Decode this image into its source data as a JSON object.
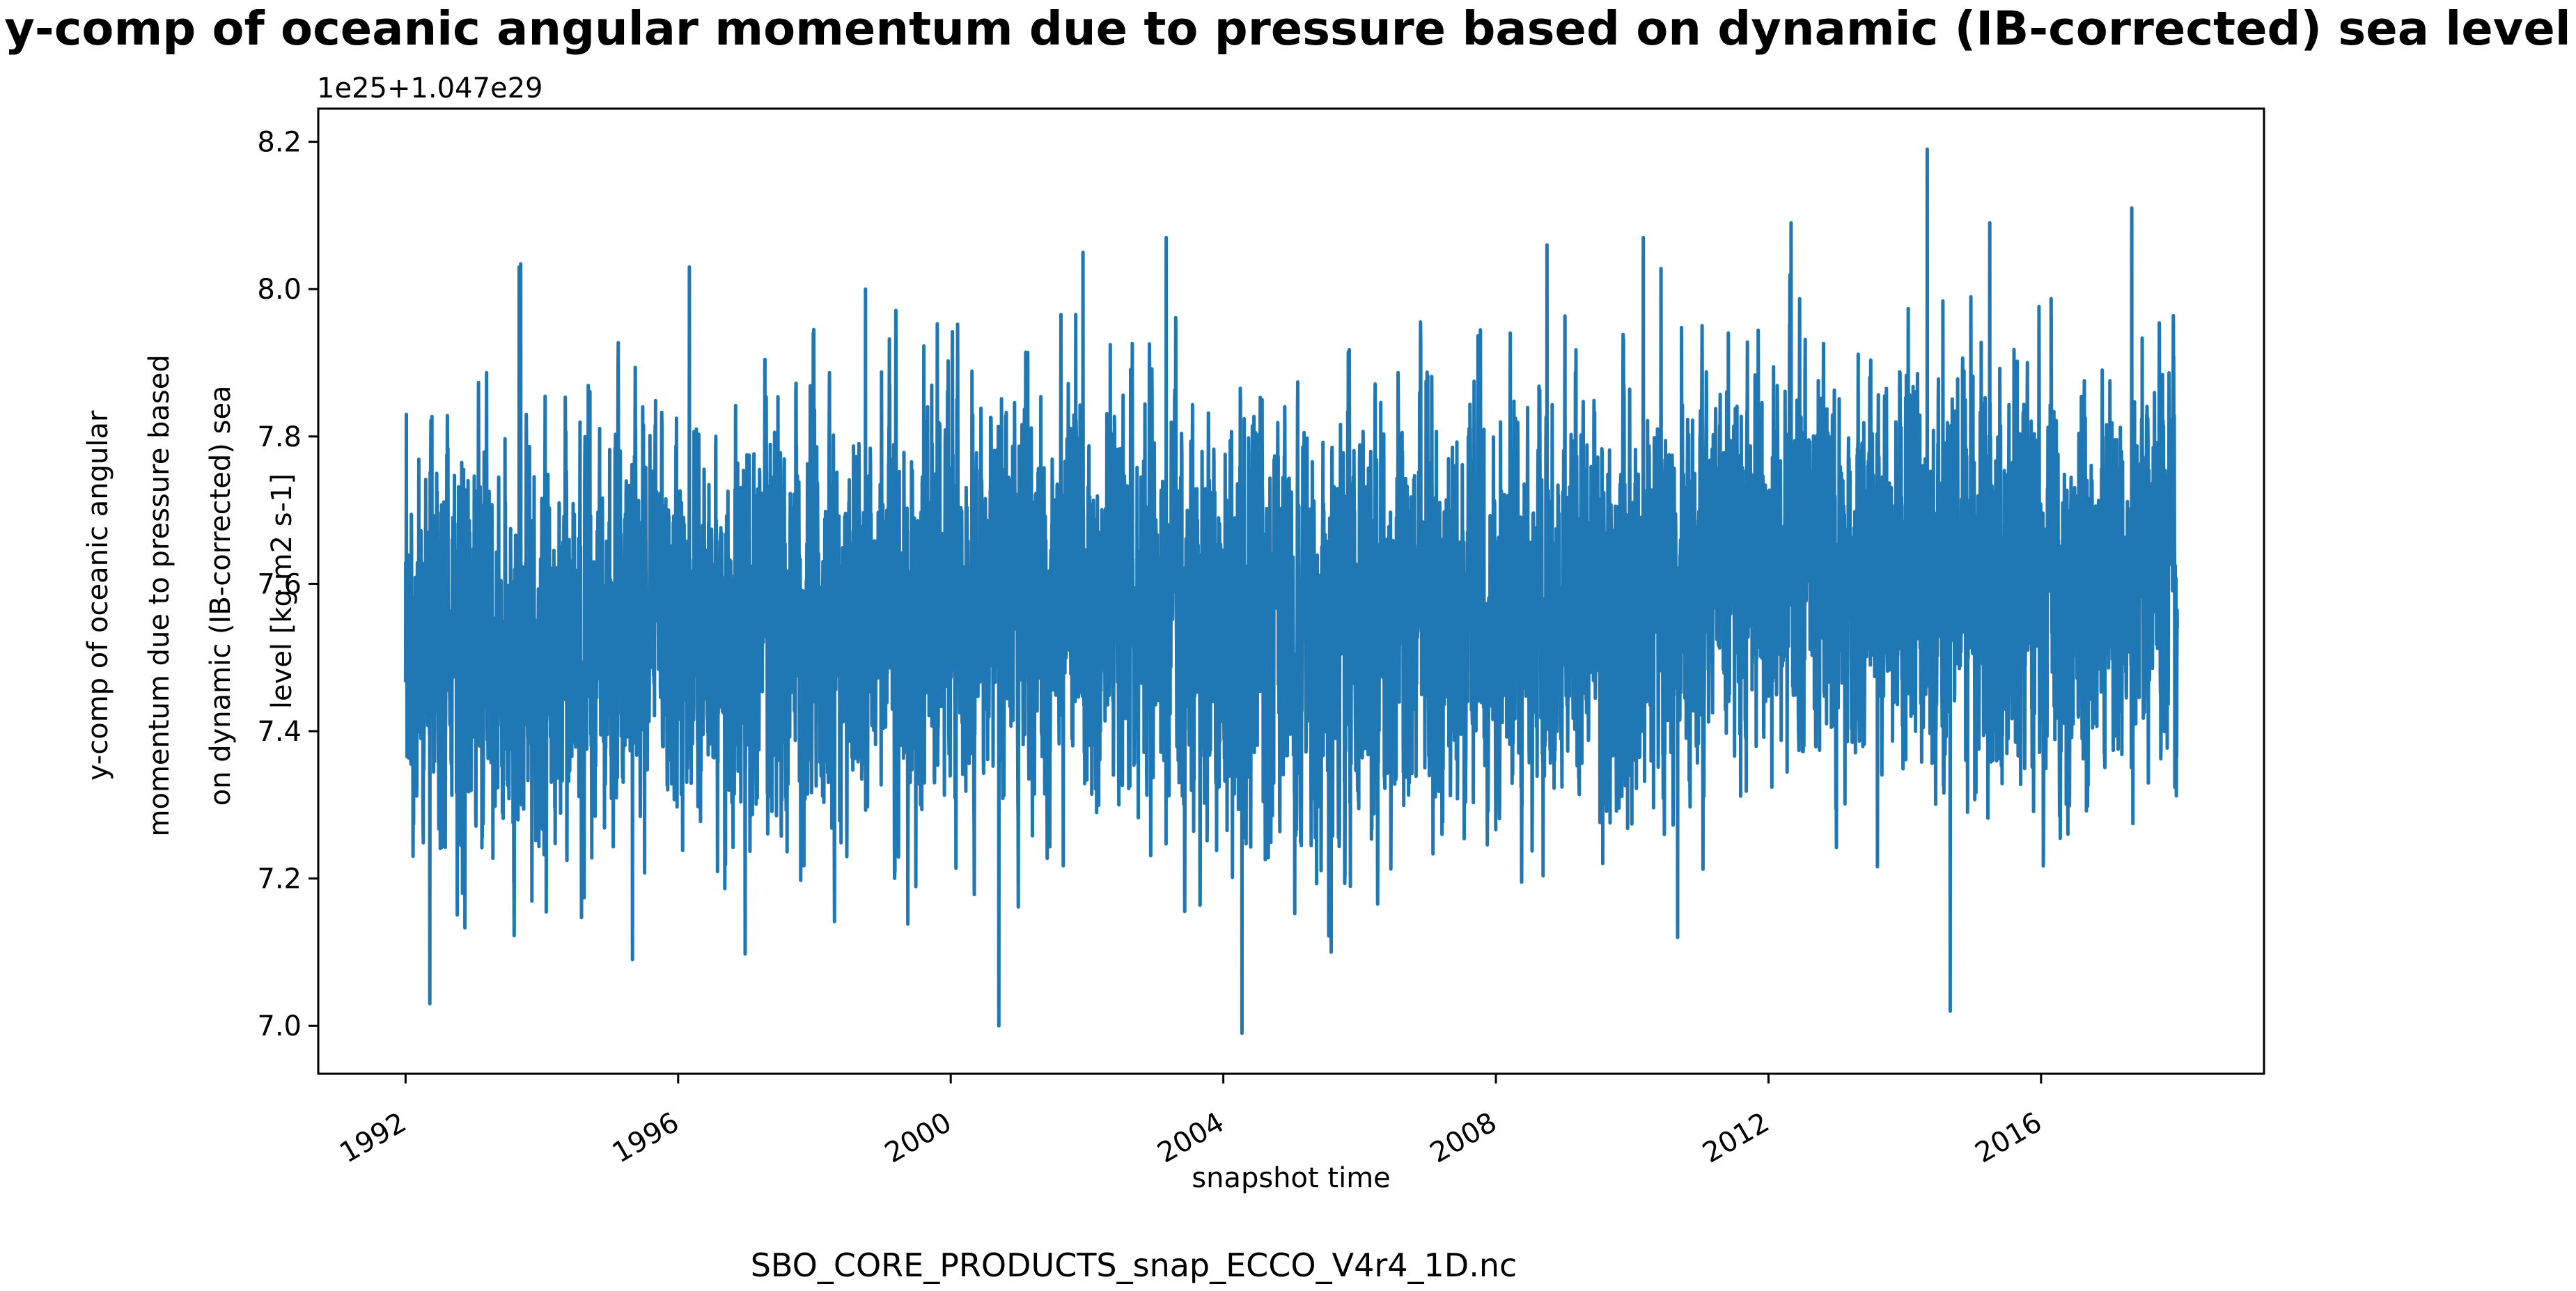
{
  "chart_data": {
    "type": "line",
    "title": "y-comp of oceanic angular momentum due to pressure based on dynamic (IB-corrected) sea level",
    "xlabel": "snapshot time",
    "ylabel_lines": [
      "y-comp of oceanic angular",
      "momentum due to pressure based",
      "on dynamic (IB-corrected) sea",
      "level [kg m2 s-1]"
    ],
    "offset_label": "1e25+1.047e29",
    "footer": "SBO_CORE_PRODUCTS_snap_ECCO_V4r4_1D.nc",
    "x_ticks": [
      "1992",
      "1996",
      "2000",
      "2004",
      "2008",
      "2012",
      "2016"
    ],
    "y_ticks": [
      "7.0",
      "7.2",
      "7.4",
      "7.6",
      "7.8",
      "8.0",
      "8.2"
    ],
    "xlim": [
      "1990-09-20",
      "2019-04-10"
    ],
    "ylim": [
      6.935,
      8.245
    ],
    "x_range": [
      "1992-01-01",
      "2017-12-31"
    ],
    "series": [
      {
        "color": "#1f77b4",
        "x_unit": "days",
        "base_level": [
          {
            "date": "1992-01-01",
            "y": 7.52
          },
          {
            "date": "1994-01-01",
            "y": 7.5
          },
          {
            "date": "1996-01-01",
            "y": 7.54
          },
          {
            "date": "1998-01-01",
            "y": 7.55
          },
          {
            "date": "2000-01-01",
            "y": 7.57
          },
          {
            "date": "2002-01-01",
            "y": 7.6
          },
          {
            "date": "2004-01-01",
            "y": 7.55
          },
          {
            "date": "2006-01-01",
            "y": 7.56
          },
          {
            "date": "2008-01-01",
            "y": 7.57
          },
          {
            "date": "2010-01-01",
            "y": 7.58
          },
          {
            "date": "2011-01-01",
            "y": 7.62
          },
          {
            "date": "2013-01-01",
            "y": 7.62
          },
          {
            "date": "2015-01-01",
            "y": 7.61
          },
          {
            "date": "2016-06-01",
            "y": 7.58
          },
          {
            "date": "2017-12-31",
            "y": 7.66
          }
        ],
        "noise_std": 0.13,
        "extremes": [
          {
            "date": "1992-01-05",
            "y": 7.83
          },
          {
            "date": "1992-05-10",
            "y": 7.03
          },
          {
            "date": "1993-09-01",
            "y": 8.03
          },
          {
            "date": "1995-05-01",
            "y": 7.09
          },
          {
            "date": "1996-03-01",
            "y": 8.03
          },
          {
            "date": "1998-10-01",
            "y": 8.0
          },
          {
            "date": "2000-09-15",
            "y": 7.0
          },
          {
            "date": "2001-12-10",
            "y": 8.05
          },
          {
            "date": "2003-03-01",
            "y": 8.07
          },
          {
            "date": "2004-04-10",
            "y": 6.99
          },
          {
            "date": "2005-08-01",
            "y": 7.1
          },
          {
            "date": "2008-10-01",
            "y": 8.06
          },
          {
            "date": "2010-03-01",
            "y": 8.07
          },
          {
            "date": "2010-09-01",
            "y": 7.12
          },
          {
            "date": "2012-05-01",
            "y": 8.09
          },
          {
            "date": "2014-05-01",
            "y": 8.19
          },
          {
            "date": "2014-09-01",
            "y": 7.02
          },
          {
            "date": "2015-04-01",
            "y": 8.09
          },
          {
            "date": "2017-05-01",
            "y": 8.11
          }
        ]
      }
    ]
  }
}
